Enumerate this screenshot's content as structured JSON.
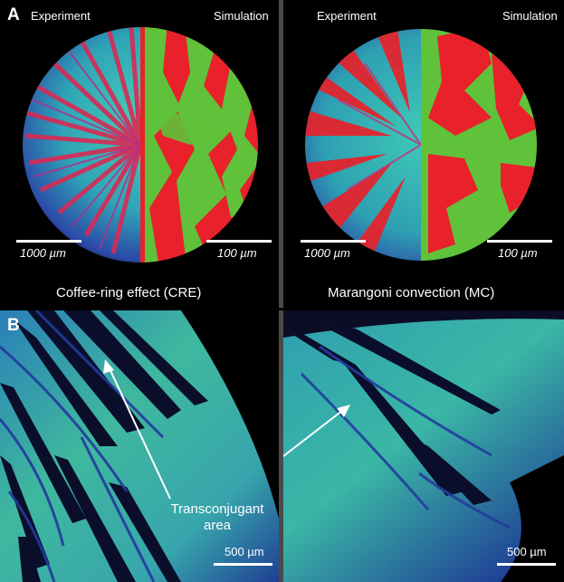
{
  "panel_a": {
    "letter": "A",
    "left": {
      "experiment_label": "Experiment",
      "simulation_label": "Simulation",
      "scale_left": "1000 µm",
      "scale_right": "100 µm",
      "caption": "Coffee-ring effect (CRE)"
    },
    "right": {
      "experiment_label": "Experiment",
      "simulation_label": "Simulation",
      "scale_left": "1000 µm",
      "scale_right": "100 µm",
      "caption": "Marangoni convection (MC)"
    }
  },
  "panel_b": {
    "letter": "B",
    "annotation_line1": "Transconjugant",
    "annotation_line2": "area",
    "scale_left": "500 µm",
    "scale_right": "500 µm"
  },
  "colors": {
    "red": "#e8212b",
    "green": "#5fc23a",
    "cyan": "#36c0b0",
    "blue": "#2a3fa0"
  }
}
